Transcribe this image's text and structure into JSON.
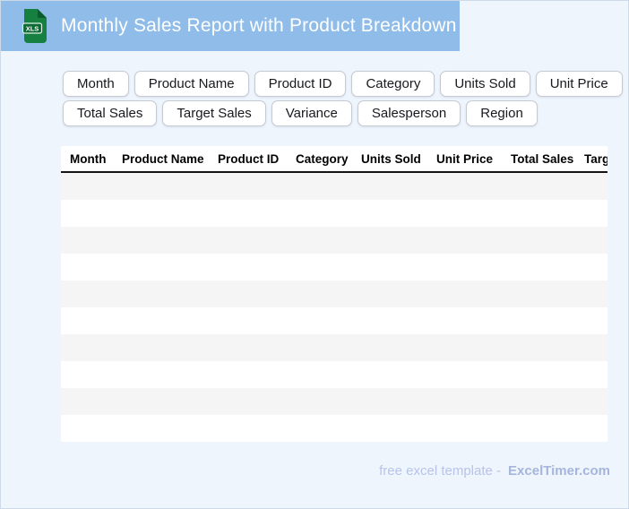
{
  "header": {
    "title": "Monthly Sales Report with Product Breakdown",
    "file_icon_label": "XLS"
  },
  "field_chips": {
    "rows": [
      [
        "Month",
        "Product Name",
        "Product ID",
        "Category",
        "Units Sold",
        "Unit Price"
      ],
      [
        "Total Sales",
        "Target Sales",
        "Variance",
        "Salesperson",
        "Region"
      ]
    ]
  },
  "table": {
    "columns": [
      "Month",
      "Product Name",
      "Product ID",
      "Category",
      "Units Sold",
      "Unit Price",
      "Total Sales",
      "Target Sales"
    ],
    "empty_row_count": 10
  },
  "footer": {
    "text": "free excel template -",
    "brand": "ExcelTimer.com"
  },
  "colors": {
    "header_bar": "#8fbce9",
    "icon_green": "#15803f",
    "icon_fold_green": "#0a5c2d",
    "icon_band_green": "#0c6b34",
    "page_background": "#eff5fd",
    "page_border": "#cfdae9",
    "chip_border": "#c6cad1",
    "row_stripe": "#f5f5f5",
    "header_divider": "#141414",
    "footer_text": "#b7c3ea",
    "footer_brand": "#a5b5dc"
  }
}
